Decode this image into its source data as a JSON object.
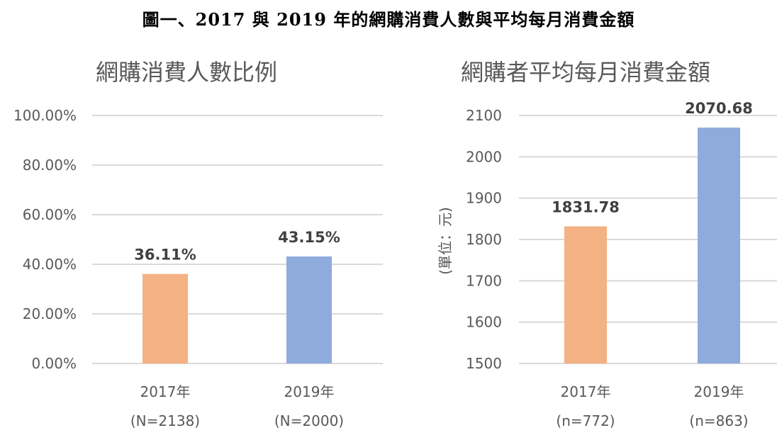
{
  "figure_title": "圖一、2017 與 2019 年的網購消費人數與平均每月消費金額",
  "chart_data": [
    {
      "type": "bar",
      "title": "網購消費人數比例",
      "categories": [
        "2017年",
        "2019年"
      ],
      "category_sublabels": [
        "(N=2138)",
        "(N=2000)"
      ],
      "values": [
        36.11,
        43.15
      ],
      "data_labels": [
        "36.11%",
        "43.15%"
      ],
      "colors": [
        "#f4b183",
        "#8faadc"
      ],
      "ylim": [
        0,
        100
      ],
      "yticks": [
        0,
        20,
        40,
        60,
        80,
        100
      ],
      "ytick_labels": [
        "0.00%",
        "20.00%",
        "40.00%",
        "60.00%",
        "80.00%",
        "100.00%"
      ],
      "ylabel": "",
      "xlabel": "",
      "grid": true
    },
    {
      "type": "bar",
      "title": "網購者平均每月消費金額",
      "categories": [
        "2017年",
        "2019年"
      ],
      "category_sublabels": [
        "(n=772)",
        "(n=863)"
      ],
      "values": [
        1831.78,
        2070.68
      ],
      "data_labels": [
        "1831.78",
        "2070.68"
      ],
      "colors": [
        "#f4b183",
        "#8faadc"
      ],
      "ylim": [
        1500,
        2100
      ],
      "yticks": [
        1500,
        1600,
        1700,
        1800,
        1900,
        2000,
        2100
      ],
      "ytick_labels": [
        "1500",
        "1600",
        "1700",
        "1800",
        "1900",
        "2000",
        "2100"
      ],
      "ylabel": "(單位：元)",
      "xlabel": "",
      "grid": true
    }
  ]
}
